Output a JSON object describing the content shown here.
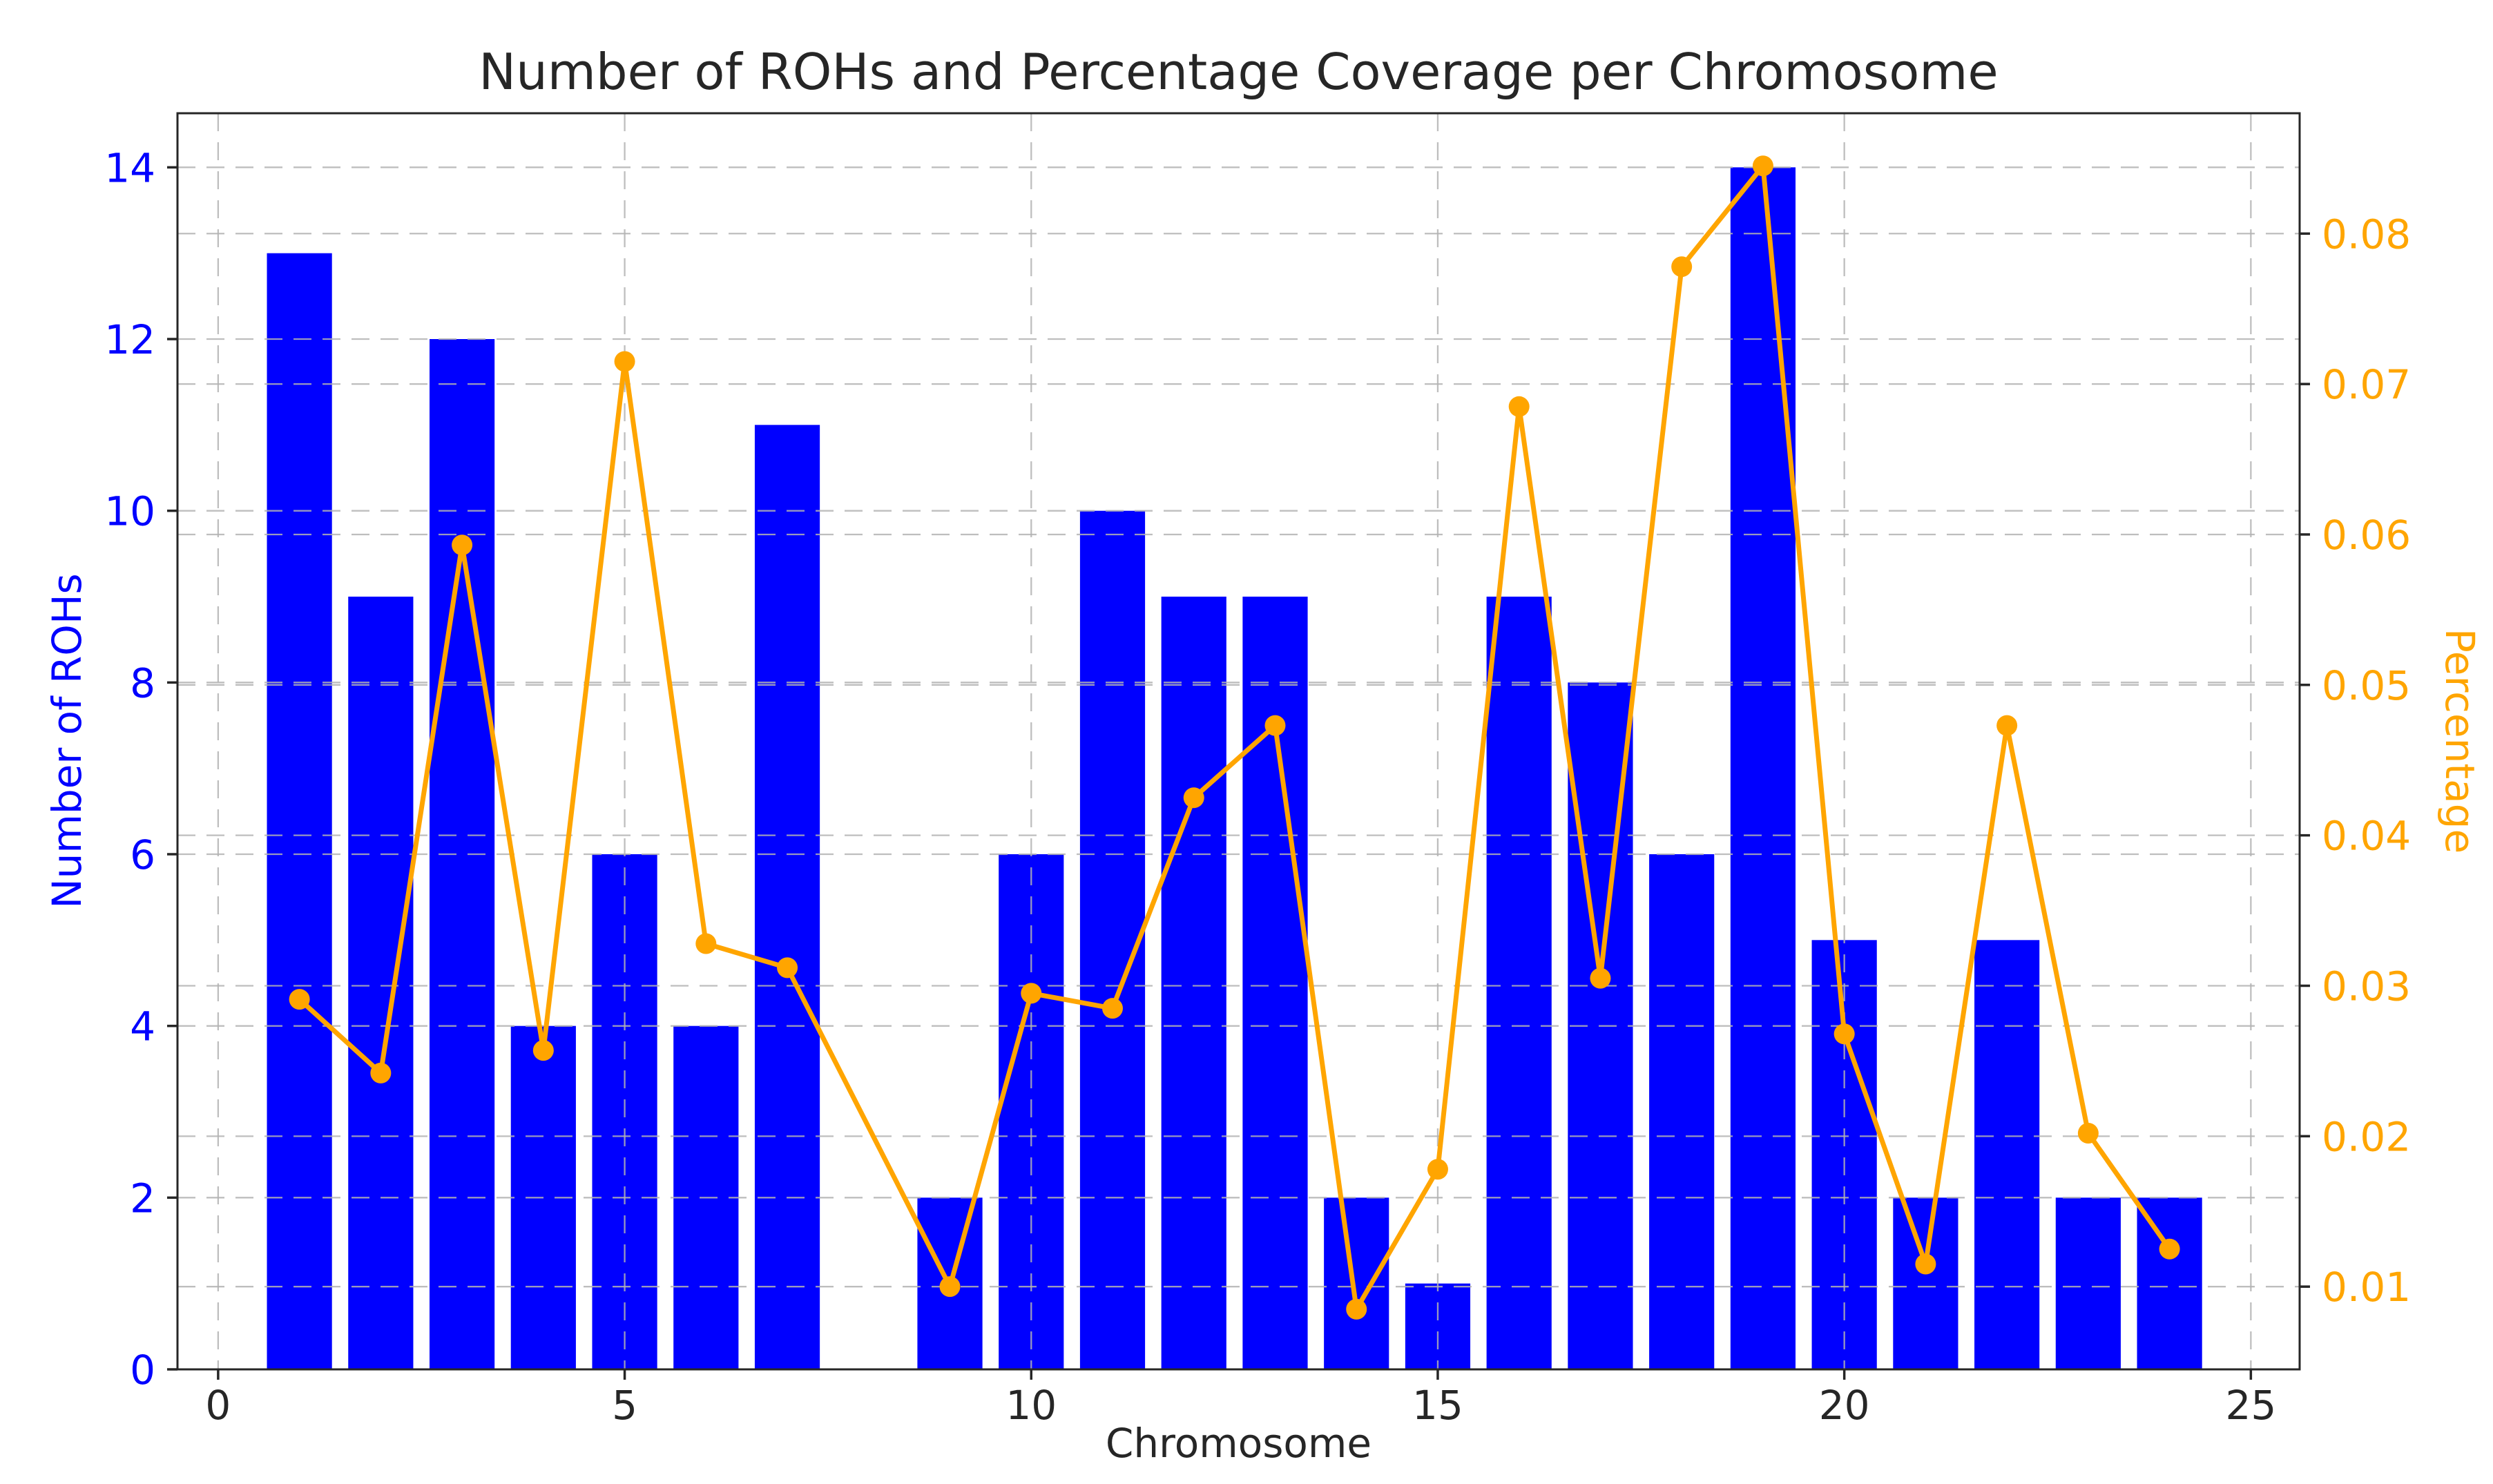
{
  "chart_data": {
    "type": "bar+line",
    "title": "Number of ROHs and Percentage Coverage per Chromosome",
    "xlabel": "Chromosome",
    "ylabel_left": "Number of ROHs",
    "ylabel_right": "Percentage",
    "x": [
      1,
      2,
      3,
      4,
      5,
      6,
      7,
      9,
      10,
      11,
      12,
      13,
      14,
      15,
      16,
      17,
      18,
      19,
      20,
      21,
      22,
      23,
      24
    ],
    "note": "no bar or line point exists for chromosome 8",
    "series": [
      {
        "name": "Number of ROHs",
        "type": "bar",
        "axis": "left",
        "color": "#0000ff",
        "values": [
          13,
          9,
          12,
          4,
          6,
          4,
          11,
          2,
          6,
          10,
          9,
          9,
          2,
          1,
          9,
          8,
          6,
          14,
          5,
          2,
          5,
          2,
          2
        ]
      },
      {
        "name": "Percentage",
        "type": "line",
        "axis": "right",
        "color": "#ffa500",
        "values": [
          0.0291,
          0.0242,
          0.0593,
          0.0257,
          0.0715,
          0.0328,
          0.0312,
          0.01,
          0.0295,
          0.0285,
          0.0425,
          0.0473,
          0.0085,
          0.0178,
          0.0685,
          0.0305,
          0.0778,
          0.0845,
          0.0268,
          0.0115,
          0.0473,
          0.0202,
          0.0125
        ]
      }
    ],
    "x_ticks": [
      "0",
      "5",
      "10",
      "15",
      "20",
      "25"
    ],
    "y_ticks_left": [
      "0",
      "2",
      "4",
      "6",
      "8",
      "10",
      "12",
      "14"
    ],
    "y_ticks_right": [
      "0.01",
      "0.02",
      "0.03",
      "0.04",
      "0.05",
      "0.06",
      "0.07",
      "0.08"
    ],
    "xlim": [
      -0.5,
      25.6
    ],
    "ylim_left": [
      0,
      14.63
    ],
    "ylim_right": [
      0.0045,
      0.088
    ],
    "bar_width": 0.8,
    "grid": "dashed horizontal lines at both left and right axis ticks, dashed vertical lines at x ticks",
    "legend": "none",
    "colors": {
      "bar": "#0000ff",
      "line": "#ffa500",
      "left_axis_text": "#0000ff",
      "right_axis_text": "#ffa500",
      "x_axis_text": "#262626",
      "title_text": "#262626",
      "grid": "#b3b3b3",
      "spine": "#262626",
      "background": "#ffffff"
    }
  }
}
